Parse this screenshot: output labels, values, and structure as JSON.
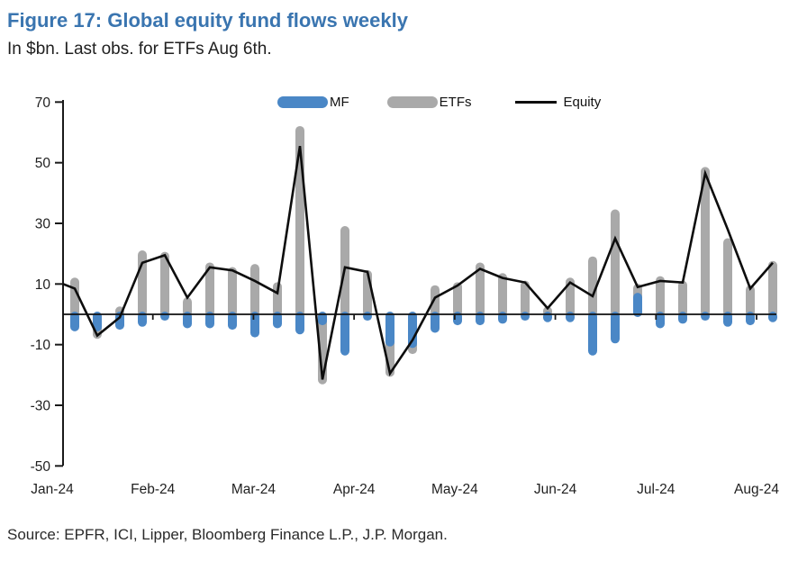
{
  "figure": {
    "title": "Figure 17: Global equity fund flows weekly",
    "subtitle": "In $bn. Last obs. for ETFs Aug 6th.",
    "source": "Source: EPFR, ICI, Lipper, Bloomberg Finance L.P., J.P. Morgan."
  },
  "colors": {
    "title_blue": "#3a75b0",
    "mf_blue": "#4a87c6",
    "etf_gray": "#a9a9a9",
    "equity_black": "#0d0d0d",
    "axis": "#1a1a1a",
    "text": "#1f1f1f"
  },
  "legend": {
    "items": [
      {
        "label": "MF",
        "type": "bar",
        "color": "#4a87c6"
      },
      {
        "label": "ETFs",
        "type": "bar",
        "color": "#a9a9a9"
      },
      {
        "label": "Equity",
        "type": "line",
        "color": "#0d0d0d"
      }
    ]
  },
  "chart_data": {
    "type": "bar",
    "title": "Global equity fund flows weekly",
    "units": "$bn",
    "frequency": "weekly",
    "x_month_labels": [
      "Jan-24",
      "Feb-24",
      "Mar-24",
      "Apr-24",
      "May-24",
      "Jun-24",
      "Jul-24",
      "Aug-24"
    ],
    "y_ticks": [
      70,
      50,
      30,
      10,
      -10,
      -30,
      -50
    ],
    "ylim": [
      -50,
      70
    ],
    "grid": false,
    "legend_position": "top-center",
    "series": [
      {
        "name": "MF",
        "type": "bar",
        "color": "#4a87c6",
        "values": [
          -5,
          -5,
          -4.5,
          -3.5,
          -1.5,
          -4,
          -4,
          -4.5,
          -7,
          -4,
          -6,
          -3,
          -13,
          -1.5,
          -10,
          -10.5,
          -5.5,
          -3,
          -3,
          -2.5,
          -1.5,
          -2,
          -2,
          -13,
          -9,
          6.5,
          -4,
          -2.5,
          -1.5,
          -3.5,
          -3,
          -2
        ]
      },
      {
        "name": "ETFs",
        "type": "bar",
        "color": "#a9a9a9",
        "values": [
          11.5,
          -7.5,
          2,
          20.5,
          20,
          5,
          16.5,
          15,
          16,
          10,
          61.5,
          -22.5,
          28.5,
          14,
          -20,
          -12.5,
          9,
          10,
          16.5,
          13,
          10.5,
          2,
          11.5,
          18.5,
          34,
          9.5,
          12,
          10.5,
          48,
          24.5,
          9,
          17
        ]
      },
      {
        "name": "Equity",
        "type": "line",
        "color": "#0d0d0d",
        "lead_in_value": 10,
        "values": [
          8.5,
          -7,
          -1,
          17,
          19.5,
          5.5,
          15.5,
          14.5,
          11,
          7,
          55.5,
          -21.5,
          15.5,
          14,
          -19.5,
          -8.5,
          5.5,
          9.5,
          15,
          12,
          10.5,
          2,
          10.5,
          6,
          25,
          9,
          11,
          10.5,
          46.5,
          28,
          8.5,
          17
        ]
      }
    ]
  }
}
